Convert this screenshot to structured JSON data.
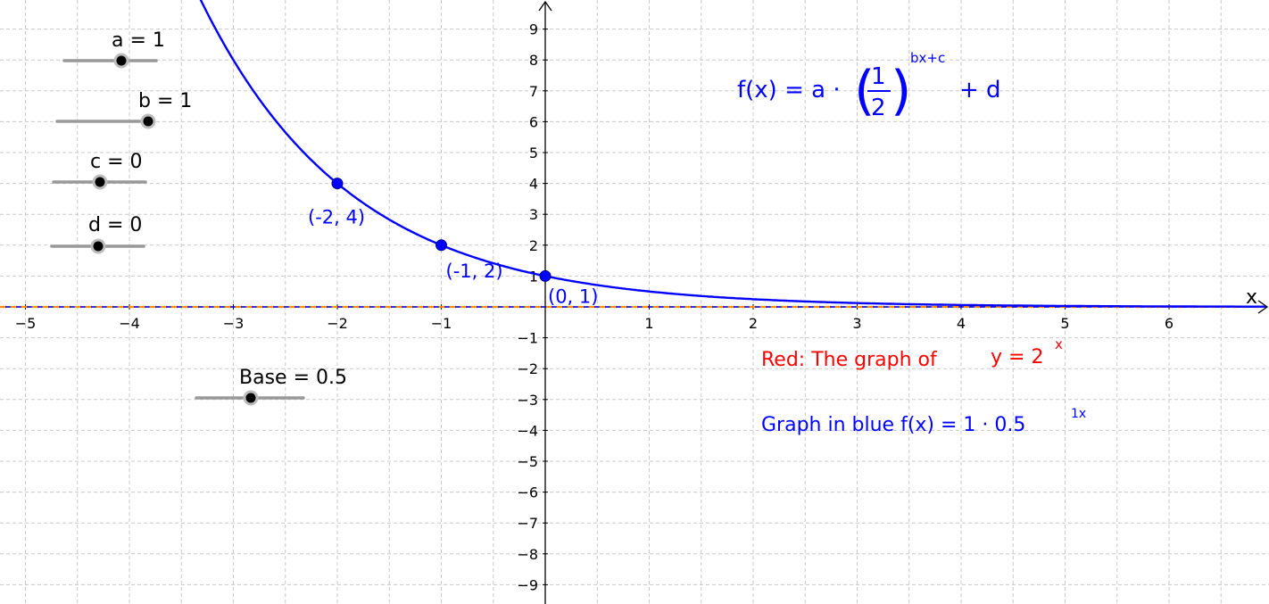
{
  "graph": {
    "x_axis_name": "x",
    "x_range": [
      -5.25,
      6.92
    ],
    "y_range": [
      -9.6,
      9.9
    ],
    "x_ticks": [
      "−5",
      "−4",
      "−3",
      "−2",
      "−1",
      "1",
      "2",
      "3",
      "4",
      "5",
      "6"
    ],
    "y_ticks": [
      "9",
      "8",
      "7",
      "6",
      "5",
      "4",
      "3",
      "2",
      "1",
      "−1",
      "−2",
      "−3",
      "−4",
      "−5",
      "−6",
      "−7",
      "−8",
      "−9"
    ],
    "grid": "dashed",
    "colors": {
      "blue": "#0000ff",
      "red": "#ff0000",
      "grid": "#c8c8c8",
      "axis": "#000000"
    }
  },
  "sliders": [
    {
      "label": "a = 1",
      "value": 1
    },
    {
      "label": "b = 1",
      "value": 1
    },
    {
      "label": "c = 0",
      "value": 0
    },
    {
      "label": "d = 0",
      "value": 0
    },
    {
      "label": "Base = 0.5",
      "value": 0.5
    }
  ],
  "points": [
    {
      "x": -2,
      "y": 4,
      "label": "(-2, 4)"
    },
    {
      "x": -1,
      "y": 2,
      "label": "(-1, 2)"
    },
    {
      "x": 0,
      "y": 1,
      "label": "(0, 1)"
    }
  ],
  "formula": {
    "lhs": "f(x) = a ·",
    "numerator": "1",
    "denominator": "2",
    "exponent": "bx+c",
    "rhs": "+ d"
  },
  "red_caption": {
    "text": "Red:  The graph of",
    "eq": "y = 2",
    "sup": "x"
  },
  "blue_caption": {
    "text": "Graph in blue  f(x) =  1 · 0.5",
    "sup": "1x"
  },
  "chart_data": {
    "type": "line",
    "series": [
      {
        "function": "f(x) = 1 · 0.5^(1x) + 0",
        "color": "#0000ff",
        "style": "solid"
      },
      {
        "function": "y = 0 (asymptote)",
        "color": "#0000ff",
        "style": "dashed"
      }
    ],
    "points": [
      [
        -2,
        4
      ],
      [
        -1,
        2
      ],
      [
        0,
        1
      ]
    ],
    "xlim": [
      -5.25,
      6.92
    ],
    "ylim": [
      -9.6,
      9.9
    ]
  }
}
